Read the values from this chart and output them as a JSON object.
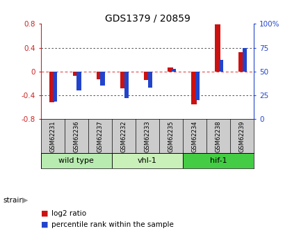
{
  "title": "GDS1379 / 20859",
  "samples": [
    "GSM62231",
    "GSM62236",
    "GSM62237",
    "GSM62232",
    "GSM62233",
    "GSM62235",
    "GSM62234",
    "GSM62238",
    "GSM62239"
  ],
  "log2_ratio": [
    -0.52,
    -0.08,
    -0.13,
    -0.28,
    -0.15,
    0.07,
    -0.55,
    0.79,
    0.33
  ],
  "percentile_rank": [
    18,
    30,
    35,
    22,
    33,
    53,
    20,
    62,
    75
  ],
  "groups": [
    {
      "label": "wild type",
      "start": 0,
      "end": 3,
      "color": "#b8ebb0"
    },
    {
      "label": "vhl-1",
      "start": 3,
      "end": 6,
      "color": "#c8f0b8"
    },
    {
      "label": "hif-1",
      "start": 6,
      "end": 9,
      "color": "#44cc44"
    }
  ],
  "ylim": [
    -0.8,
    0.8
  ],
  "yticks": [
    -0.8,
    -0.4,
    0.0,
    0.4,
    0.8
  ],
  "ytick_labels_left": [
    "-0.8",
    "-0.4",
    "0",
    "0.4",
    "0.8"
  ],
  "ytick_labels_right": [
    "0",
    "25",
    "50",
    "75",
    "100%"
  ],
  "red_color": "#cc1111",
  "blue_color": "#2244cc",
  "zero_line_color": "#dd3333",
  "grid_color": "#333333",
  "bg_color": "#ffffff",
  "legend_red": "log2 ratio",
  "legend_blue": "percentile rank within the sample",
  "label_color_left": "#cc2222",
  "label_color_right": "#2244cc",
  "sample_bg": "#cccccc"
}
